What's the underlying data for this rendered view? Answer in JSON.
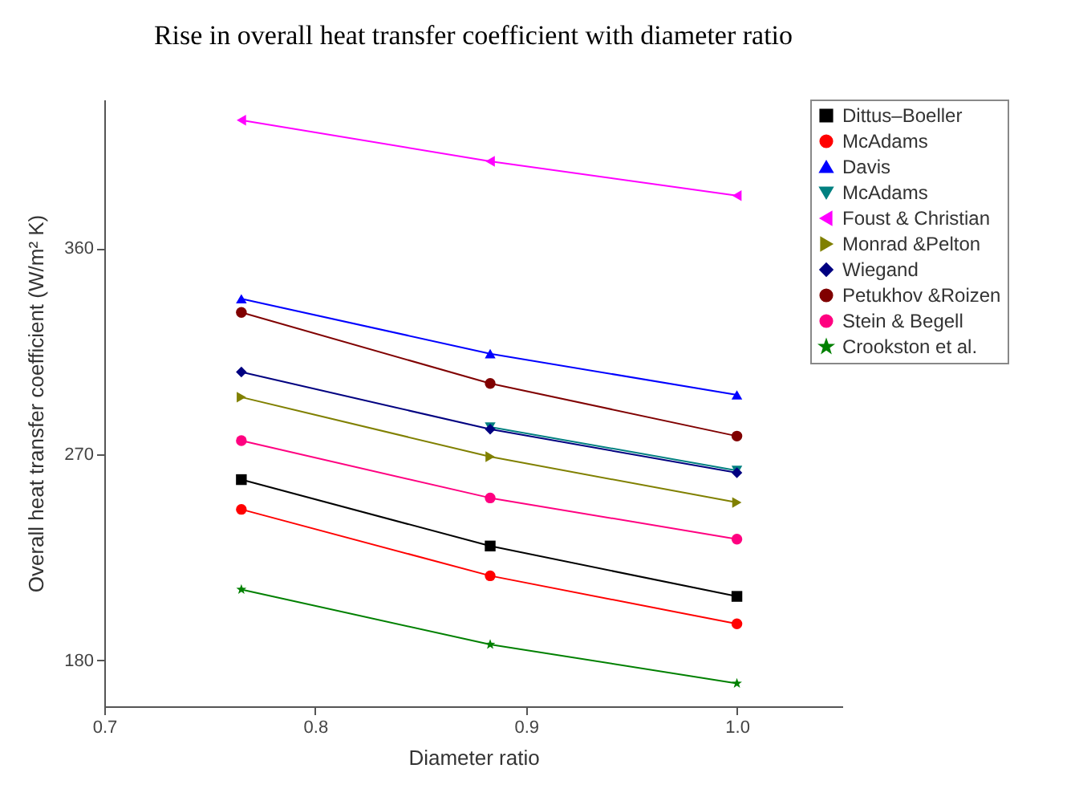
{
  "chart_data": {
    "type": "line",
    "title": "Rise in overall heat transfer coefficient with diameter ratio",
    "xlabel": "Diameter ratio",
    "ylabel": "Overall heat transfer coefficient (W/m² K)",
    "x": [
      0.765,
      0.883,
      1.0
    ],
    "xlim": [
      0.7,
      1.05
    ],
    "xticks": [
      0.7,
      0.8,
      0.9,
      {
        "value": 1.0,
        "label": "1.0"
      }
    ],
    "ylim": [
      160,
      425
    ],
    "yticks": [
      180,
      270,
      360
    ],
    "grid": false,
    "legend": "top right",
    "series": [
      {
        "name": "Dittus–Boeller",
        "color": "#000000",
        "marker": "square",
        "values": [
          259,
          230,
          208
        ]
      },
      {
        "name": "McAdams",
        "color": "#ff0000",
        "marker": "circle",
        "values": [
          246,
          217,
          196
        ]
      },
      {
        "name": "Davis",
        "color": "#0000ff",
        "marker": "triangle",
        "values": [
          338,
          314,
          296
        ]
      },
      {
        "name": "McAdams",
        "color": "#008080",
        "marker": "triangle-down",
        "values": [
          null,
          282,
          263
        ]
      },
      {
        "name": "Foust & Christian",
        "color": "#ff00ff",
        "marker": "triangle-left",
        "values": [
          416,
          398,
          383
        ]
      },
      {
        "name": "Monrad &Pelton",
        "color": "#808000",
        "marker": "triangle-right",
        "values": [
          295,
          269,
          249
        ]
      },
      {
        "name": "Wiegand",
        "color": "#000080",
        "marker": "diamond",
        "values": [
          306,
          281,
          262
        ]
      },
      {
        "name": "Petukhov &Roizen",
        "color": "#800000",
        "marker": "circle",
        "values": [
          332,
          301,
          278
        ]
      },
      {
        "name": "Stein & Begell",
        "color": "#ff0080",
        "marker": "circle",
        "values": [
          276,
          251,
          233
        ]
      },
      {
        "name": "Crookston et al.",
        "color": "#008000",
        "marker": "star",
        "values": [
          211,
          187,
          170
        ]
      }
    ]
  }
}
